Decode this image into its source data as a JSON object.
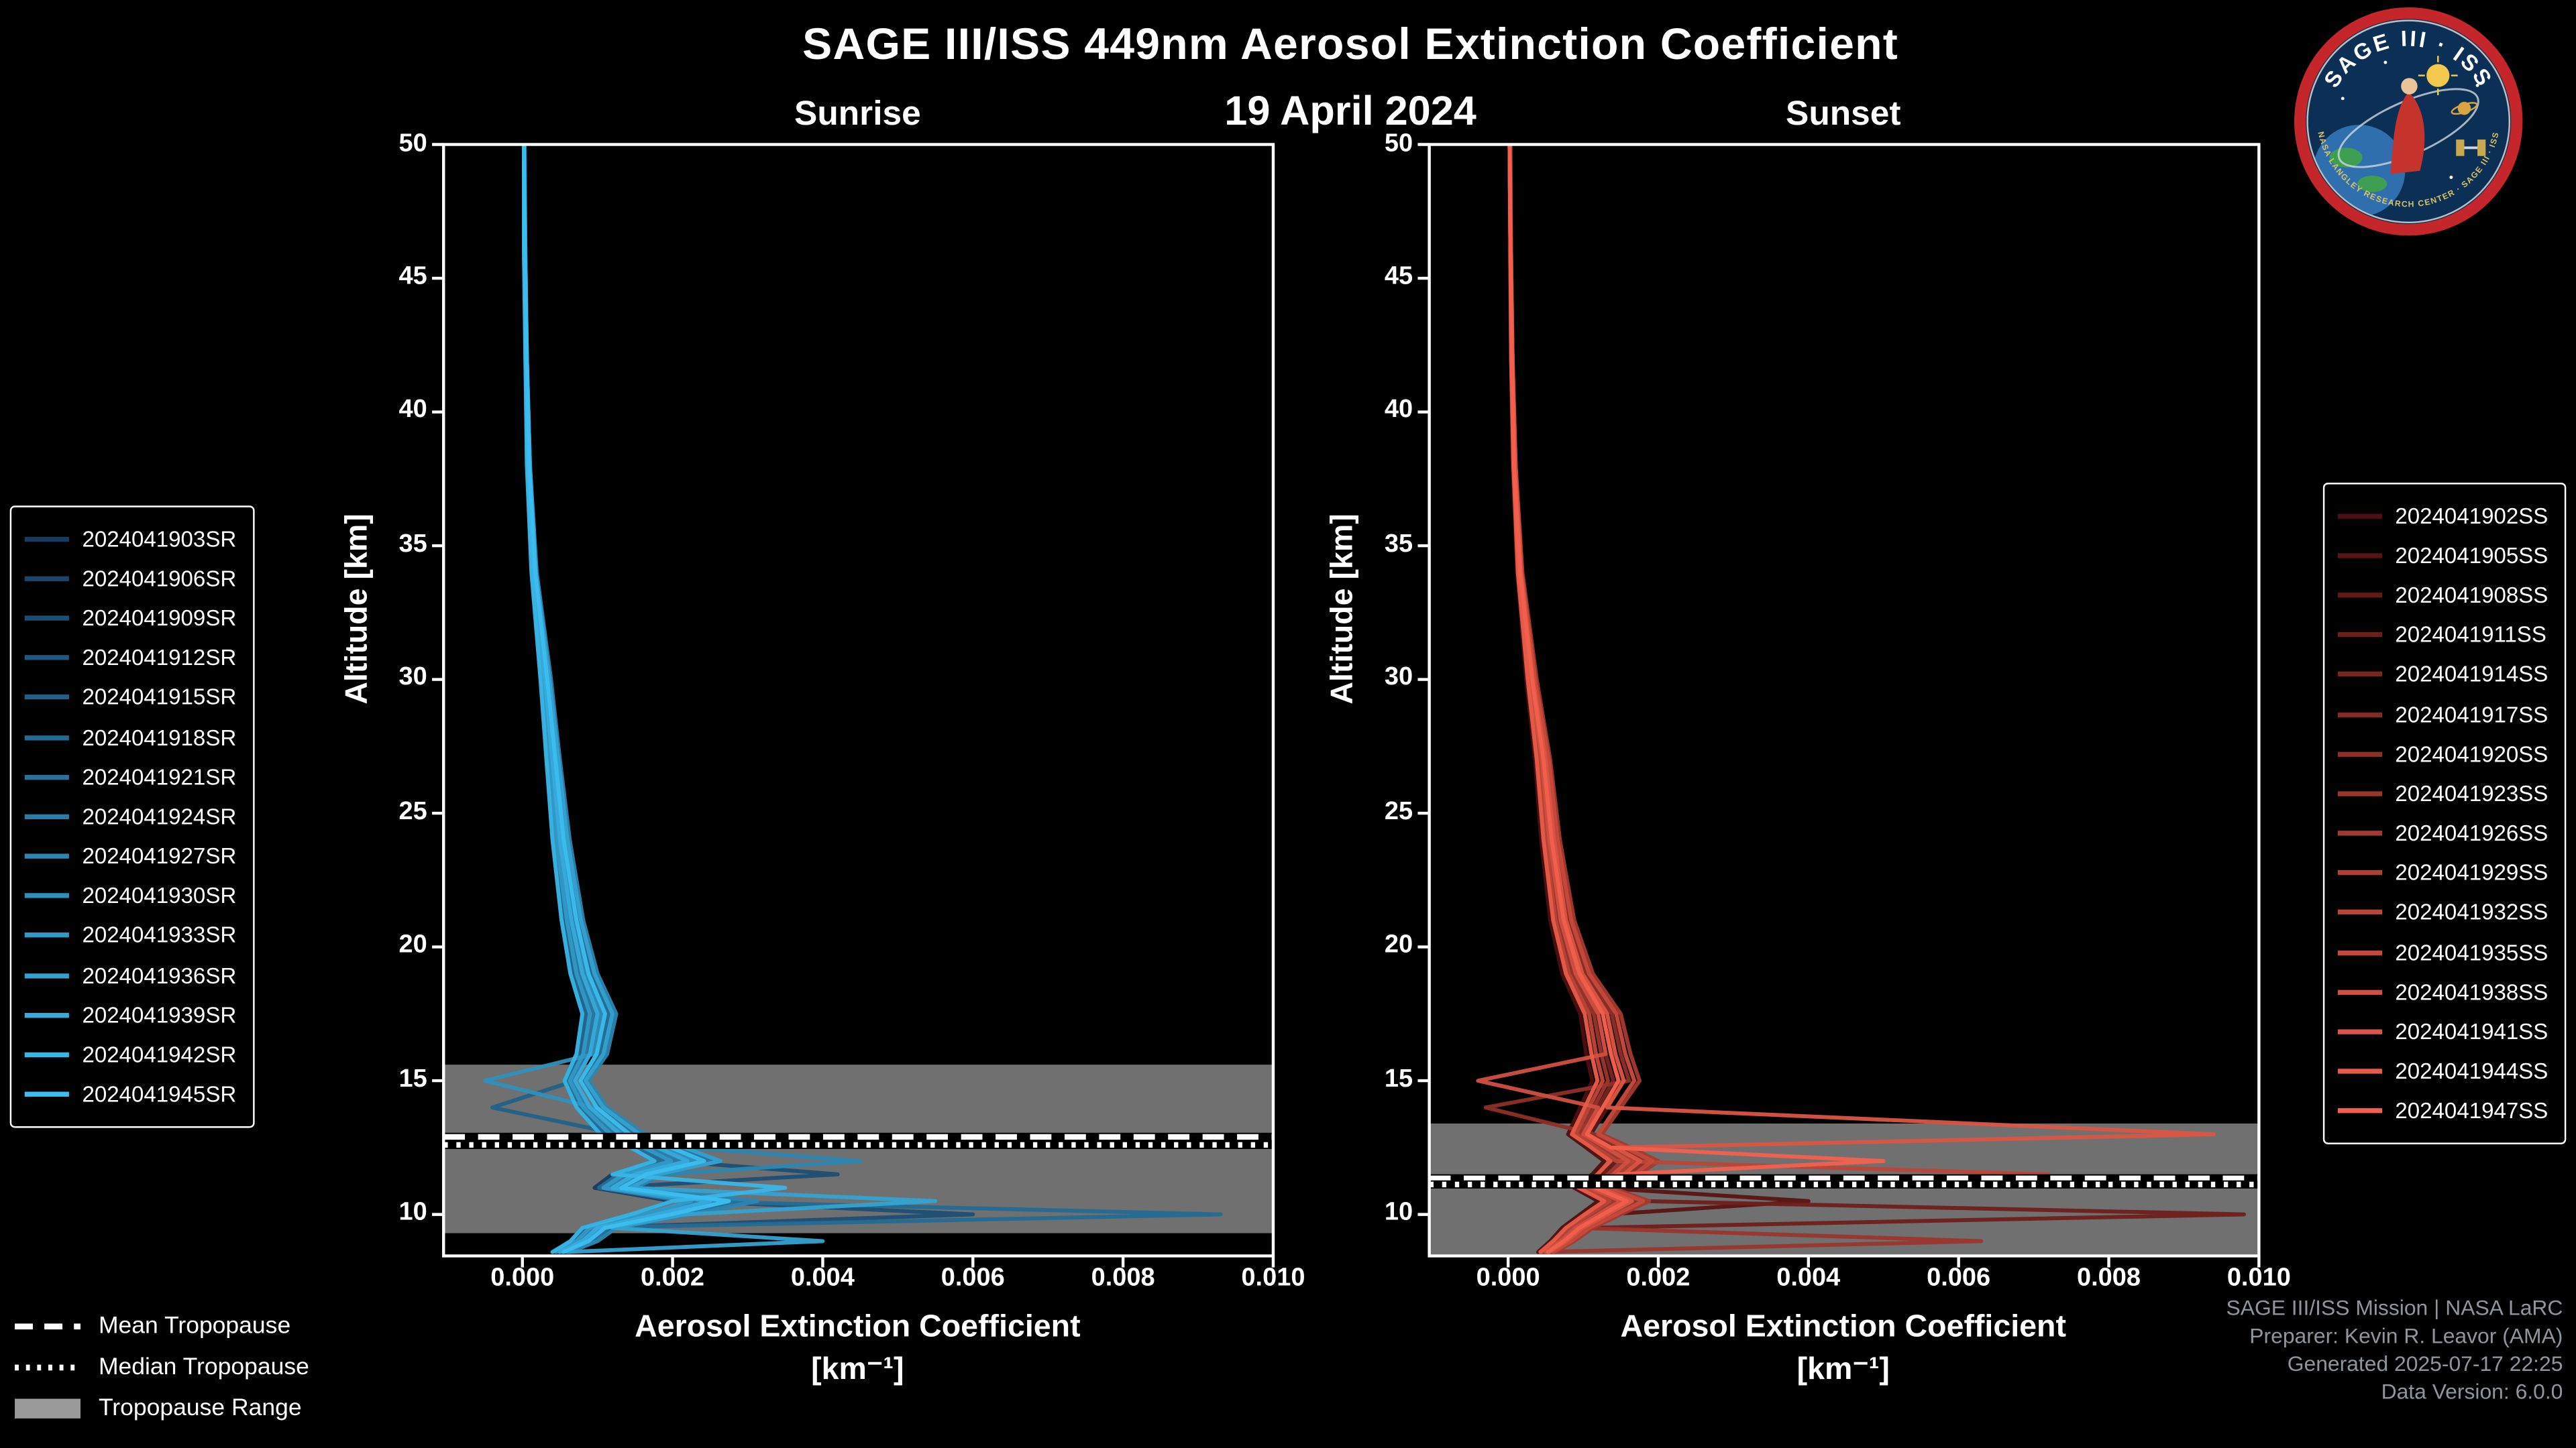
{
  "header": {
    "title": "SAGE III/ISS 449nm Aerosol Extinction Coefficient",
    "date": "19 April 2024"
  },
  "logo": {
    "top_text": "SAGE III · ISS",
    "bottom_text": "NASA LANGLEY RESEARCH CENTER · SAGE III · ISS"
  },
  "axes": {
    "xlabel": "Aerosol Extinction Coefficient",
    "xlabel_units": "[km⁻¹]",
    "ylabel": "Altitude [km]",
    "xtick_labels": [
      "0.000",
      "0.002",
      "0.004",
      "0.006",
      "0.008",
      "0.010"
    ],
    "xtick_values": [
      0,
      0.002,
      0.004,
      0.006,
      0.008,
      0.01
    ],
    "ytick_values": [
      10,
      15,
      20,
      25,
      30,
      35,
      40,
      45,
      50
    ]
  },
  "tropopause_legend": {
    "mean": "Mean Tropopause",
    "median": "Median Tropopause",
    "range": "Tropopause Range"
  },
  "footer": {
    "line1": "SAGE III/ISS Mission | NASA LaRC",
    "line2": "Preparer: Kevin R. Leavor (AMA)",
    "line3": "Generated 2025-07-17 22:25",
    "line4": "Data Version: 6.0.0"
  },
  "style": {
    "background": "#000000",
    "axis_color": "#ffffff",
    "band_color": "#848484",
    "band_legend_color": "#9a9a9a",
    "footer_color": "#8f969b",
    "sunrise_accent": "#3CBEF0",
    "sunset_accent": "#F2604D"
  },
  "chart_data": [
    {
      "type": "line",
      "title": "Sunrise",
      "xlabel": "Aerosol Extinction Coefficient [km⁻¹]",
      "ylabel": "Altitude [km]",
      "xlim": [
        -0.00105,
        0.01
      ],
      "ylim": [
        8.45,
        50
      ],
      "grid": false,
      "legend_position": "outside-left",
      "value_scale": 0.001,
      "altitudes_km": [
        50,
        46,
        42,
        38,
        34,
        30,
        27,
        24,
        21,
        19,
        17.5,
        16,
        15,
        14,
        13,
        12.5,
        12,
        11.5,
        11,
        10.5,
        10,
        9.5,
        9,
        8.6
      ],
      "tropopause": {
        "mean_km": 12.9,
        "median_km": 12.6,
        "range_km": [
          9.3,
          15.6
        ]
      },
      "series": [
        {
          "name": "2024041903SR",
          "color": "#173B5F",
          "values": [
            0.02,
            0.02,
            0.04,
            0.06,
            0.12,
            0.24,
            0.32,
            0.4,
            0.52,
            0.64,
            0.8,
            0.72,
            0.56,
            0.72,
            1.04,
            1.44,
            1.76,
            1.2,
            0.96,
            2.0,
            1.44,
            0.8,
            0.64,
            0.4
          ]
        },
        {
          "name": "2024041906SR",
          "color": "#1A4469",
          "values": [
            0.02,
            0.03,
            0.06,
            0.09,
            0.17,
            0.33,
            0.44,
            0.55,
            0.72,
            0.88,
            1.1,
            0.99,
            0.77,
            0.99,
            1.43,
            1.98,
            2.42,
            1.65,
            1.32,
            2.75,
            1.98,
            1.1,
            0.88,
            0.55
          ]
        },
        {
          "name": "2024041909SR",
          "color": "#1C4E74",
          "values": [
            0.02,
            0.03,
            0.05,
            0.07,
            0.14,
            0.27,
            0.36,
            0.45,
            0.59,
            0.72,
            0.9,
            0.81,
            0.63,
            0.81,
            1.17,
            1.62,
            1.98,
            4.2,
            1.08,
            2.25,
            6.0,
            0.9,
            0.72,
            0.45
          ]
        },
        {
          "name": "2024041912SR",
          "color": "#1F577E",
          "values": [
            0.02,
            0.04,
            0.06,
            0.1,
            0.18,
            0.36,
            0.48,
            0.6,
            0.78,
            0.96,
            1.2,
            1.08,
            0.84,
            1.08,
            1.56,
            2.16,
            2.64,
            1.8,
            1.44,
            3.0,
            2.16,
            1.2,
            0.96,
            0.6
          ]
        },
        {
          "name": "2024041915SR",
          "color": "#226088",
          "values": [
            0.02,
            0.03,
            0.05,
            0.08,
            0.15,
            0.3,
            0.4,
            0.5,
            0.65,
            0.8,
            1.0,
            0.9,
            0.7,
            -0.4,
            1.3,
            1.8,
            2.2,
            1.5,
            1.2,
            2.5,
            1.8,
            1.0,
            0.8,
            0.5
          ]
        },
        {
          "name": "2024041918SR",
          "color": "#246A93",
          "values": [
            0.02,
            0.03,
            0.04,
            0.07,
            0.13,
            0.26,
            0.34,
            0.43,
            0.55,
            0.68,
            0.85,
            0.77,
            0.6,
            0.77,
            1.11,
            1.53,
            1.87,
            1.28,
            1.02,
            2.13,
            9.3,
            0.85,
            0.68,
            0.43
          ]
        },
        {
          "name": "2024041921SR",
          "color": "#27739D",
          "values": [
            0.02,
            0.03,
            0.06,
            0.09,
            0.17,
            0.35,
            0.46,
            0.58,
            0.75,
            0.92,
            1.15,
            1.04,
            0.81,
            1.04,
            1.5,
            2.07,
            2.53,
            1.73,
            1.38,
            2.88,
            2.07,
            1.15,
            0.92,
            0.58
          ]
        },
        {
          "name": "2024041924SR",
          "color": "#2A7DA8",
          "values": [
            0.02,
            0.03,
            0.05,
            0.08,
            0.14,
            0.29,
            0.38,
            0.48,
            0.62,
            0.76,
            0.95,
            0.86,
            0.67,
            0.86,
            1.24,
            1.71,
            2.09,
            1.43,
            1.14,
            2.38,
            1.71,
            0.95,
            0.76,
            0.48
          ]
        },
        {
          "name": "2024041927SR",
          "color": "#2C86B2",
          "values": [
            0.03,
            0.04,
            0.06,
            0.1,
            0.19,
            0.38,
            0.5,
            0.63,
            0.81,
            1.0,
            1.25,
            1.13,
            0.88,
            1.13,
            1.63,
            2.25,
            4.5,
            1.88,
            1.5,
            3.13,
            2.25,
            1.25,
            1.0,
            0.63
          ]
        },
        {
          "name": "2024041930SR",
          "color": "#2F8FBC",
          "values": [
            0.02,
            0.03,
            0.05,
            0.08,
            0.16,
            0.32,
            0.42,
            0.53,
            0.68,
            0.84,
            1.05,
            0.95,
            -0.5,
            0.95,
            1.37,
            1.89,
            2.31,
            1.58,
            1.26,
            2.63,
            1.89,
            1.05,
            0.84,
            0.53
          ]
        },
        {
          "name": "2024041933SR",
          "color": "#3199C7",
          "values": [
            0.02,
            0.03,
            0.05,
            0.07,
            0.14,
            0.27,
            0.36,
            0.45,
            0.59,
            0.72,
            0.9,
            0.81,
            0.63,
            0.81,
            1.17,
            1.62,
            1.98,
            1.35,
            1.08,
            2.25,
            1.62,
            0.9,
            0.72,
            0.45
          ]
        },
        {
          "name": "2024041936SR",
          "color": "#34A2D1",
          "values": [
            0.02,
            0.04,
            0.06,
            0.1,
            0.18,
            0.36,
            0.48,
            0.6,
            0.78,
            0.96,
            1.2,
            1.08,
            0.84,
            1.08,
            1.56,
            2.16,
            2.64,
            1.8,
            1.44,
            5.5,
            2.16,
            1.2,
            4.0,
            0.6
          ]
        },
        {
          "name": "2024041939SR",
          "color": "#37ABDB",
          "values": [
            0.02,
            0.03,
            0.05,
            0.08,
            0.15,
            0.3,
            0.4,
            0.5,
            0.65,
            0.8,
            1.0,
            0.9,
            0.7,
            0.9,
            1.3,
            1.8,
            2.2,
            1.5,
            1.2,
            2.5,
            1.8,
            1.0,
            0.8,
            0.5
          ]
        },
        {
          "name": "2024041942SR",
          "color": "#39B5E6",
          "values": [
            0.02,
            0.02,
            0.04,
            0.06,
            0.12,
            0.24,
            0.32,
            0.4,
            0.52,
            0.64,
            0.8,
            0.72,
            0.56,
            0.72,
            1.04,
            1.44,
            1.76,
            1.2,
            3.5,
            2.0,
            1.44,
            0.8,
            0.64,
            0.4
          ]
        },
        {
          "name": "2024041945SR",
          "color": "#3CBEF0",
          "values": [
            0.02,
            0.03,
            0.06,
            0.09,
            0.17,
            0.33,
            0.44,
            0.55,
            0.72,
            0.88,
            1.1,
            0.99,
            0.77,
            0.99,
            1.43,
            1.98,
            2.42,
            1.65,
            1.32,
            2.75,
            1.98,
            1.1,
            0.88,
            0.55
          ]
        }
      ]
    },
    {
      "type": "line",
      "title": "Sunset",
      "xlabel": "Aerosol Extinction Coefficient [km⁻¹]",
      "ylabel": "Altitude [km]",
      "xlim": [
        -0.00105,
        0.01
      ],
      "ylim": [
        8.45,
        50
      ],
      "grid": false,
      "legend_position": "outside-right",
      "value_scale": 0.001,
      "altitudes_km": [
        50,
        46,
        42,
        38,
        34,
        30,
        27,
        24,
        21,
        19,
        17.5,
        16,
        15,
        14,
        13,
        12.5,
        12,
        11.5,
        11,
        10.5,
        10,
        9.5,
        9,
        8.6
      ],
      "tropopause": {
        "mean_km": 11.35,
        "median_km": 11.12,
        "range_km": [
          8.45,
          13.4
        ]
      },
      "series": [
        {
          "name": "2024041902SS",
          "color": "#4D0F0F",
          "values": [
            0.02,
            0.02,
            0.04,
            0.06,
            0.12,
            0.24,
            0.36,
            0.44,
            0.56,
            0.72,
            0.96,
            1.04,
            1.12,
            0.96,
            0.8,
            1.04,
            1.28,
            1.12,
            0.88,
            1.2,
            0.96,
            0.72,
            0.56,
            0.4
          ]
        },
        {
          "name": "2024041905SS",
          "color": "#581413",
          "values": [
            0.02,
            0.03,
            0.06,
            0.09,
            0.17,
            0.33,
            0.5,
            0.61,
            0.77,
            0.99,
            1.32,
            1.43,
            1.54,
            1.32,
            1.1,
            1.43,
            1.76,
            1.54,
            1.21,
            4.0,
            1.32,
            0.99,
            0.77,
            0.55
          ]
        },
        {
          "name": "2024041908SS",
          "color": "#631A17",
          "values": [
            0.02,
            0.03,
            0.05,
            0.07,
            0.14,
            0.27,
            0.41,
            0.5,
            0.63,
            0.81,
            1.08,
            1.17,
            1.26,
            1.08,
            0.9,
            1.17,
            1.44,
            1.26,
            0.99,
            1.35,
            1.08,
            0.81,
            0.63,
            0.45
          ]
        },
        {
          "name": "2024041911SS",
          "color": "#6E1F1B",
          "values": [
            0.02,
            0.04,
            0.06,
            0.1,
            0.18,
            0.36,
            0.54,
            0.66,
            0.84,
            1.08,
            1.44,
            1.56,
            1.68,
            1.44,
            1.2,
            1.56,
            1.92,
            1.68,
            1.32,
            1.8,
            9.8,
            1.08,
            0.84,
            0.6
          ]
        },
        {
          "name": "2024041914SS",
          "color": "#792520",
          "values": [
            0.02,
            0.03,
            0.05,
            0.08,
            0.15,
            0.3,
            0.45,
            0.55,
            0.7,
            0.9,
            1.2,
            1.3,
            1.4,
            1.2,
            1.0,
            1.3,
            1.6,
            1.4,
            1.1,
            1.5,
            1.2,
            0.9,
            0.7,
            0.5
          ]
        },
        {
          "name": "2024041917SS",
          "color": "#842A24",
          "values": [
            0.02,
            0.03,
            0.04,
            0.07,
            0.13,
            0.26,
            0.38,
            0.47,
            0.6,
            0.77,
            1.02,
            1.11,
            1.19,
            1.02,
            0.85,
            1.11,
            1.36,
            1.19,
            0.94,
            1.28,
            1.02,
            0.77,
            0.6,
            0.43
          ]
        },
        {
          "name": "2024041920SS",
          "color": "#8F2F28",
          "values": [
            0.02,
            0.03,
            0.06,
            0.09,
            0.17,
            0.35,
            0.52,
            0.63,
            0.81,
            1.04,
            1.38,
            1.5,
            1.61,
            -0.3,
            1.15,
            1.5,
            1.84,
            1.61,
            1.27,
            1.73,
            1.38,
            1.04,
            0.81,
            0.58
          ]
        },
        {
          "name": "2024041923SS",
          "color": "#9A352C",
          "values": [
            0.02,
            0.03,
            0.05,
            0.08,
            0.14,
            0.29,
            0.43,
            0.52,
            0.67,
            0.86,
            1.14,
            1.24,
            1.33,
            1.14,
            0.95,
            1.24,
            1.52,
            1.33,
            1.05,
            1.43,
            1.14,
            0.9,
            6.3,
            0.48
          ]
        },
        {
          "name": "2024041926SS",
          "color": "#A53A30",
          "values": [
            0.03,
            0.04,
            0.06,
            0.1,
            0.19,
            0.38,
            0.56,
            0.69,
            0.88,
            1.13,
            1.5,
            1.63,
            1.75,
            1.5,
            1.25,
            1.63,
            2.0,
            1.75,
            1.38,
            1.88,
            1.5,
            1.13,
            0.88,
            0.63
          ]
        },
        {
          "name": "2024041929SS",
          "color": "#B04034",
          "values": [
            0.02,
            0.03,
            0.05,
            0.08,
            0.16,
            0.32,
            0.47,
            0.58,
            0.74,
            0.95,
            1.26,
            1.37,
            1.47,
            1.26,
            1.05,
            1.37,
            1.68,
            1.47,
            1.16,
            1.58,
            1.26,
            0.95,
            0.74,
            0.53
          ]
        },
        {
          "name": "2024041932SS",
          "color": "#BB4538",
          "values": [
            0.02,
            0.03,
            0.05,
            0.07,
            0.14,
            0.27,
            0.41,
            0.5,
            0.63,
            0.81,
            1.08,
            1.17,
            1.26,
            1.08,
            0.9,
            1.17,
            1.44,
            7.2,
            0.99,
            1.35,
            1.08,
            0.81,
            0.63,
            0.45
          ]
        },
        {
          "name": "2024041935SS",
          "color": "#C64A3C",
          "values": [
            0.02,
            0.04,
            0.06,
            0.1,
            0.18,
            0.36,
            0.54,
            0.66,
            0.84,
            1.08,
            1.44,
            1.56,
            1.68,
            1.44,
            1.2,
            1.56,
            1.92,
            1.68,
            1.32,
            1.8,
            1.44,
            1.08,
            0.84,
            0.6
          ]
        },
        {
          "name": "2024041938SS",
          "color": "#D15041",
          "values": [
            0.02,
            0.03,
            0.05,
            0.08,
            0.15,
            0.3,
            0.45,
            0.55,
            0.7,
            0.9,
            1.2,
            1.3,
            -0.4,
            1.2,
            1.0,
            1.3,
            1.6,
            1.4,
            1.1,
            1.5,
            1.2,
            0.9,
            0.7,
            0.5
          ]
        },
        {
          "name": "2024041941SS",
          "color": "#DC5545",
          "values": [
            0.02,
            0.03,
            0.06,
            0.09,
            0.17,
            0.33,
            0.5,
            0.61,
            0.77,
            0.99,
            1.32,
            1.43,
            1.54,
            1.32,
            9.4,
            1.43,
            1.76,
            1.54,
            1.21,
            1.65,
            1.32,
            0.99,
            0.77,
            0.55
          ]
        },
        {
          "name": "2024041944SS",
          "color": "#E75B49",
          "values": [
            0.02,
            0.03,
            0.04,
            0.07,
            0.13,
            0.26,
            0.38,
            0.47,
            0.6,
            0.77,
            1.02,
            1.11,
            1.19,
            1.02,
            0.85,
            1.11,
            1.36,
            1.19,
            0.94,
            1.28,
            1.02,
            0.77,
            0.6,
            0.43
          ]
        },
        {
          "name": "2024041947SS",
          "color": "#F2604D",
          "values": [
            0.02,
            0.03,
            0.05,
            0.08,
            0.16,
            0.32,
            0.47,
            0.58,
            0.74,
            0.95,
            1.26,
            1.37,
            1.47,
            1.26,
            1.05,
            1.37,
            5.0,
            1.47,
            1.16,
            1.58,
            1.26,
            0.95,
            0.74,
            0.53
          ]
        }
      ]
    }
  ]
}
